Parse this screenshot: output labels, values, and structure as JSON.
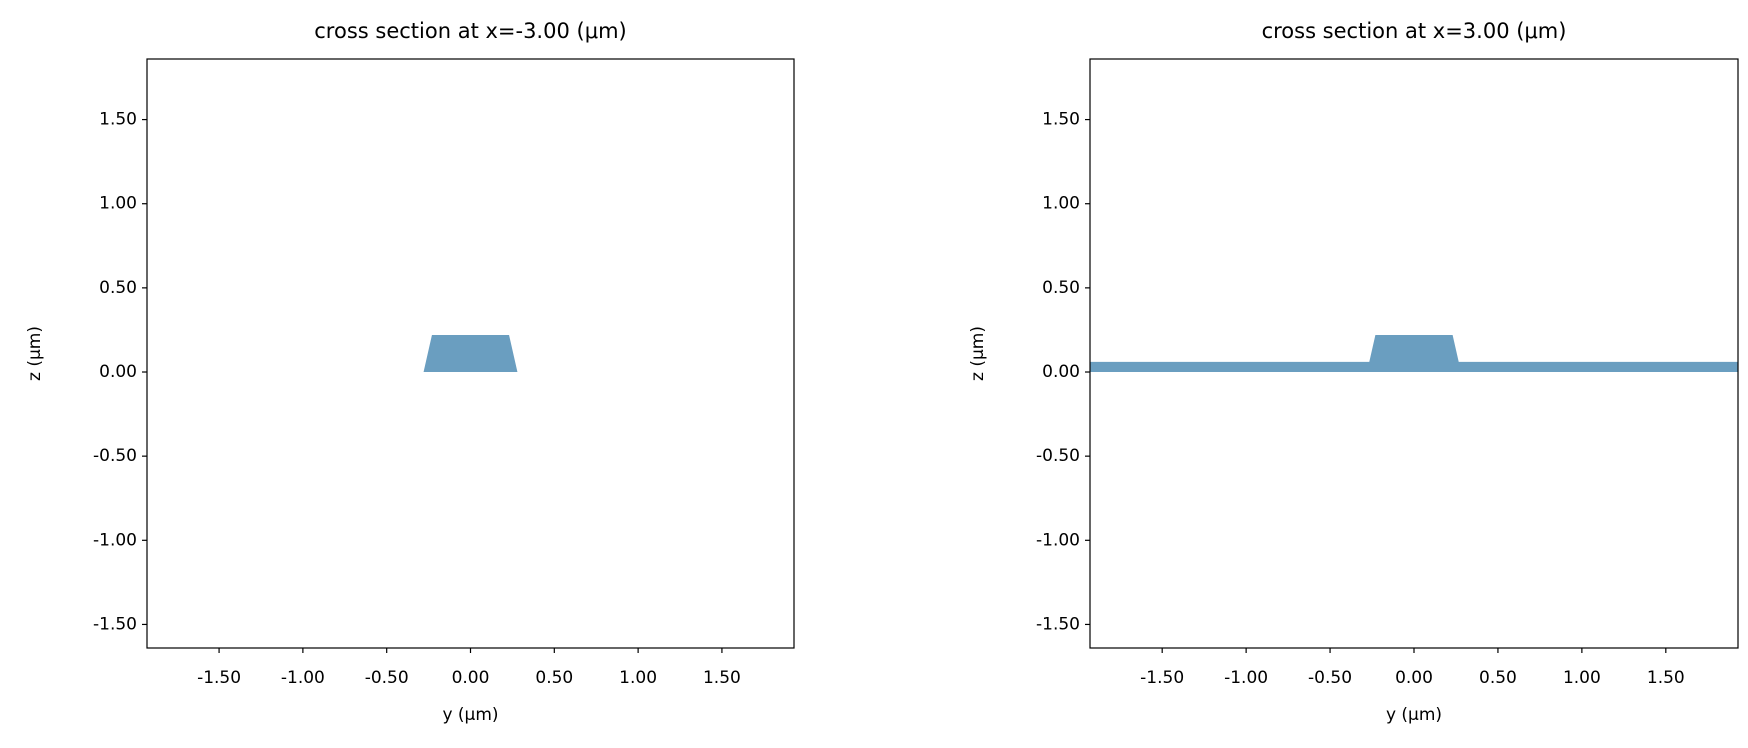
{
  "chart_data": [
    {
      "type": "polygon",
      "title": "cross section at x=-3.00 (μm)",
      "x_label": "y (μm)",
      "y_label": "z (μm)",
      "xlim": [
        -1.93,
        1.93
      ],
      "ylim": [
        -1.64,
        1.86
      ],
      "xticks": [
        {
          "value": -1.5,
          "label": "-1.50"
        },
        {
          "value": -1,
          "label": "-1.00"
        },
        {
          "value": -0.5,
          "label": "-0.50"
        },
        {
          "value": 0,
          "label": "0.00"
        },
        {
          "value": 0.5,
          "label": "0.50"
        },
        {
          "value": 1,
          "label": "1.00"
        },
        {
          "value": 1.5,
          "label": "1.50"
        }
      ],
      "yticks": [
        {
          "value": -1.5,
          "label": "-1.50"
        },
        {
          "value": -1,
          "label": "-1.00"
        },
        {
          "value": -0.5,
          "label": "-0.50"
        },
        {
          "value": 0,
          "label": "0.00"
        },
        {
          "value": 0.5,
          "label": "0.50"
        },
        {
          "value": 1,
          "label": "1.00"
        },
        {
          "value": 1.5,
          "label": "1.50"
        }
      ],
      "shapes": [
        {
          "color": "#6a9ec0",
          "x": [
            -0.28,
            0.28,
            0.23,
            -0.23
          ],
          "y": [
            0,
            0,
            0.22,
            0.22
          ]
        }
      ]
    },
    {
      "type": "polygon",
      "title": "cross section at x=3.00 (μm)",
      "x_label": "y (μm)",
      "y_label": "z (μm)",
      "xlim": [
        -1.93,
        1.93
      ],
      "ylim": [
        -1.64,
        1.86
      ],
      "xticks": [
        {
          "value": -1.5,
          "label": "-1.50"
        },
        {
          "value": -1,
          "label": "-1.00"
        },
        {
          "value": -0.5,
          "label": "-0.50"
        },
        {
          "value": 0,
          "label": "0.00"
        },
        {
          "value": 0.5,
          "label": "0.50"
        },
        {
          "value": 1,
          "label": "1.00"
        },
        {
          "value": 1.5,
          "label": "1.50"
        }
      ],
      "yticks": [
        {
          "value": -1.5,
          "label": "-1.50"
        },
        {
          "value": -1,
          "label": "-1.00"
        },
        {
          "value": -0.5,
          "label": "-0.50"
        },
        {
          "value": 0,
          "label": "0.00"
        },
        {
          "value": 0.5,
          "label": "0.50"
        },
        {
          "value": 1,
          "label": "1.00"
        },
        {
          "value": 1.5,
          "label": "1.50"
        }
      ],
      "shapes": [
        {
          "color": "#6a9ec0",
          "x": [
            -1.93,
            1.93,
            1.93,
            -1.93
          ],
          "y": [
            0,
            0,
            0.06,
            0.06
          ]
        },
        {
          "color": "#6a9ec0",
          "x": [
            -0.28,
            0.28,
            0.23,
            -0.23
          ],
          "y": [
            0,
            0,
            0.22,
            0.22
          ]
        }
      ]
    }
  ]
}
